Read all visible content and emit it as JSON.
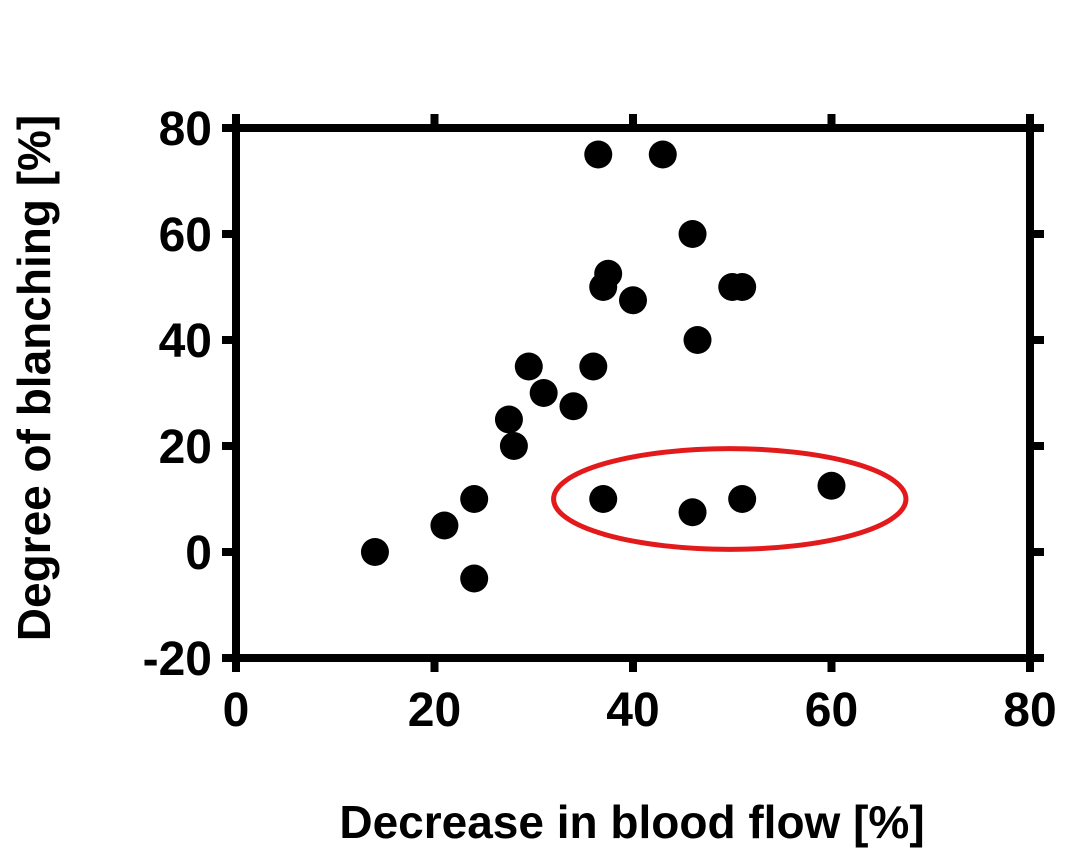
{
  "chart_data": {
    "type": "scatter",
    "xlabel": "Decrease in blood flow [%]",
    "ylabel": "Degree of blanching [%]",
    "xlim": [
      0,
      80
    ],
    "ylim": [
      -20,
      80
    ],
    "xticks": [
      0,
      20,
      40,
      60,
      80
    ],
    "yticks": [
      -20,
      0,
      20,
      40,
      60,
      80
    ],
    "xtick_labels": [
      "0",
      "20",
      "40",
      "60",
      "80"
    ],
    "ytick_labels": [
      "-20",
      "0",
      "20",
      "40",
      "60",
      "80"
    ],
    "grid": false,
    "legend": "none",
    "points": [
      {
        "x": 14,
        "y": 0
      },
      {
        "x": 21,
        "y": 5
      },
      {
        "x": 24,
        "y": 10
      },
      {
        "x": 24,
        "y": -5
      },
      {
        "x": 27.5,
        "y": 25
      },
      {
        "x": 28,
        "y": 20
      },
      {
        "x": 29.5,
        "y": 35
      },
      {
        "x": 31,
        "y": 30
      },
      {
        "x": 34,
        "y": 27.5
      },
      {
        "x": 36,
        "y": 35
      },
      {
        "x": 36.5,
        "y": 75
      },
      {
        "x": 37.5,
        "y": 52.5
      },
      {
        "x": 37,
        "y": 50
      },
      {
        "x": 40,
        "y": 47.5
      },
      {
        "x": 43,
        "y": 75
      },
      {
        "x": 46,
        "y": 60
      },
      {
        "x": 46.5,
        "y": 40
      },
      {
        "x": 50,
        "y": 50
      },
      {
        "x": 51,
        "y": 50
      },
      {
        "x": 37,
        "y": 10
      },
      {
        "x": 46,
        "y": 7.5
      },
      {
        "x": 51,
        "y": 10
      },
      {
        "x": 60,
        "y": 12.5
      }
    ],
    "highlight": {
      "shape": "ellipse",
      "color": "#e31a1c",
      "x_range": [
        32,
        67.5
      ],
      "y_range": [
        0.5,
        19.5
      ]
    },
    "marker_color": "#000000"
  }
}
